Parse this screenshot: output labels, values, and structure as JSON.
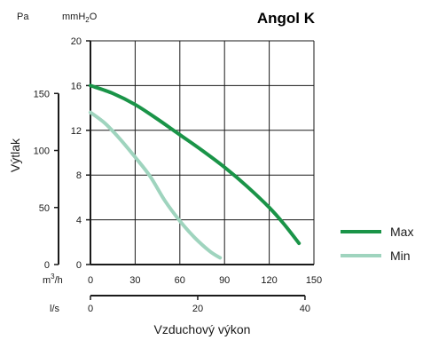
{
  "chart_data": {
    "type": "line",
    "title": "Angol K",
    "ylabel": "Výtlak",
    "xlabel": "Vzduchový výkon",
    "y_unit_pa": "Pa",
    "y_unit_mmh2o": {
      "base": "mmH",
      "sub": "2",
      "tail": "O"
    },
    "x_unit_m3h": {
      "base": "m",
      "sup": "3",
      "tail": "/h"
    },
    "x_unit_ls": "l/s",
    "x_m3h": {
      "lim": [
        0,
        150
      ],
      "ticks": [
        0,
        30,
        60,
        90,
        120,
        150
      ]
    },
    "y_mmh2o": {
      "lim": [
        0,
        20
      ],
      "ticks": [
        0,
        4,
        8,
        12,
        16,
        20
      ]
    },
    "y_pa": {
      "ticks": [
        0,
        50,
        100,
        150
      ],
      "labels": [
        "0",
        "50",
        "100",
        "150"
      ]
    },
    "x_ls": {
      "ticks": [
        0,
        20,
        40
      ],
      "labels": [
        "0",
        "20",
        "40"
      ]
    },
    "grid": true,
    "legend_position": "right",
    "series": [
      {
        "name": "Max",
        "color": "#1a9448",
        "x": [
          0,
          15,
          30,
          45,
          60,
          75,
          90,
          105,
          120,
          130,
          140
        ],
        "y": [
          16.0,
          15.3,
          14.3,
          13.0,
          11.6,
          10.2,
          8.7,
          7.0,
          5.1,
          3.6,
          1.9
        ]
      },
      {
        "name": "Min",
        "color": "#9fd4be",
        "x": [
          0,
          10,
          20,
          30,
          40,
          50,
          60,
          70,
          80,
          87
        ],
        "y": [
          13.6,
          12.6,
          11.2,
          9.6,
          7.9,
          5.7,
          3.9,
          2.4,
          1.2,
          0.6
        ]
      }
    ]
  }
}
